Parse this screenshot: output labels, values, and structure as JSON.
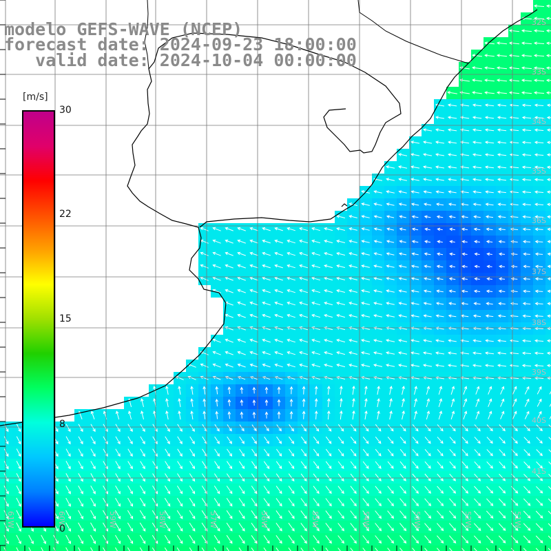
{
  "title": {
    "line1": "modelo GEFS-WAVE (NCEP)",
    "line2": "forecast date: 2024-09-23 18:00:00",
    "line3": "   valid date: 2024-10-04 00:00:00"
  },
  "colorbar": {
    "unit": "[m/s]",
    "ticks": [
      "30",
      "22",
      "15",
      "8",
      "0"
    ],
    "tick_values": [
      30,
      22,
      15,
      8,
      0
    ],
    "colors": [
      "#0000ff",
      "#0080ff",
      "#00c8ff",
      "#00ffdd",
      "#00ff60",
      "#20d000",
      "#a0e000",
      "#ffff00",
      "#ffa000",
      "#ff5000",
      "#ff0000",
      "#e0006a",
      "#c0008a"
    ]
  },
  "map": {
    "lat_labels": [
      "32S",
      "33S",
      "34S",
      "35S",
      "36S",
      "37S",
      "38S",
      "39S",
      "40S",
      "41S"
    ],
    "lon_labels": [
      "61W",
      "60W",
      "59W",
      "58W",
      "57W",
      "56W",
      "55W",
      "54W",
      "53W",
      "52W",
      "51W"
    ],
    "field": "wind speed (m/s) with wind direction arrows",
    "water_color_low": "#0050ff",
    "water_color_mid": "#00b4ff",
    "water_color_high": "#00ff80"
  }
}
